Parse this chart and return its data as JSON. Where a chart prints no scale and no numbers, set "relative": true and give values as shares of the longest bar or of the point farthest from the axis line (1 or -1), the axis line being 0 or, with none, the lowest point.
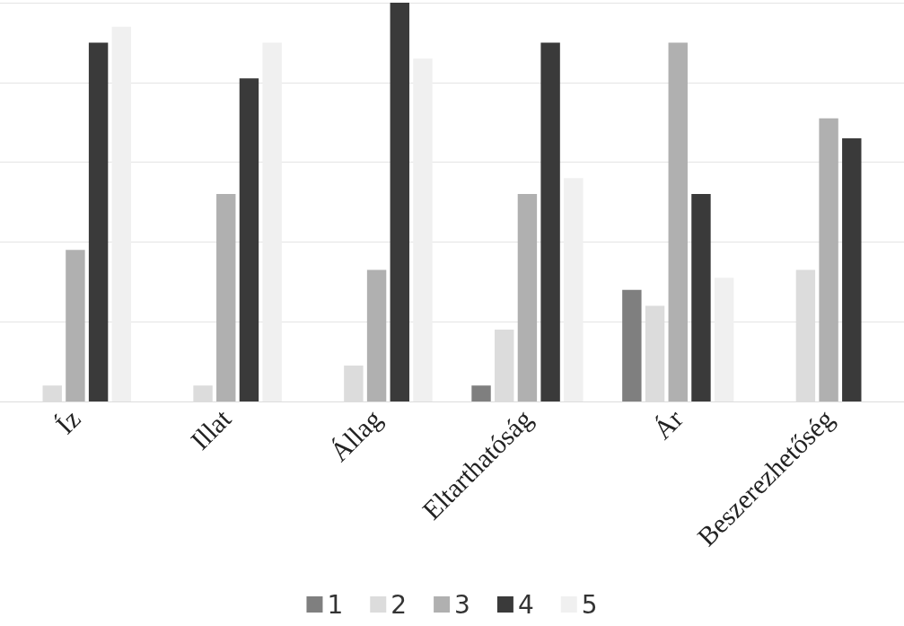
{
  "chart_data": {
    "type": "bar",
    "relative": true,
    "grid": "y",
    "legend": "bottom",
    "categories": [
      "Íz",
      "Illat",
      "Állag",
      "Eltarthatóság",
      "Ár",
      "Beszerezhetőség"
    ],
    "series": [
      {
        "name": "1",
        "color": "#7f7f7f",
        "values": [
          null,
          0,
          0,
          0.04,
          0.28,
          0
        ]
      },
      {
        "name": "2",
        "color": "#dcdcdc",
        "values": [
          0.04,
          0.04,
          0.09,
          0.18,
          0.24,
          0.33
        ]
      },
      {
        "name": "3",
        "color": "#b0b0b0",
        "values": [
          0.38,
          0.52,
          0.33,
          0.52,
          0.9,
          0.71
        ]
      },
      {
        "name": "4",
        "color": "#3a3a3a",
        "values": [
          0.9,
          0.81,
          1,
          0.9,
          0.52,
          0.66
        ]
      },
      {
        "name": "5",
        "color": "#f0f0f0",
        "values": [
          0.94,
          0.9,
          0.86,
          0.56,
          0.31,
          null
        ]
      }
    ]
  }
}
